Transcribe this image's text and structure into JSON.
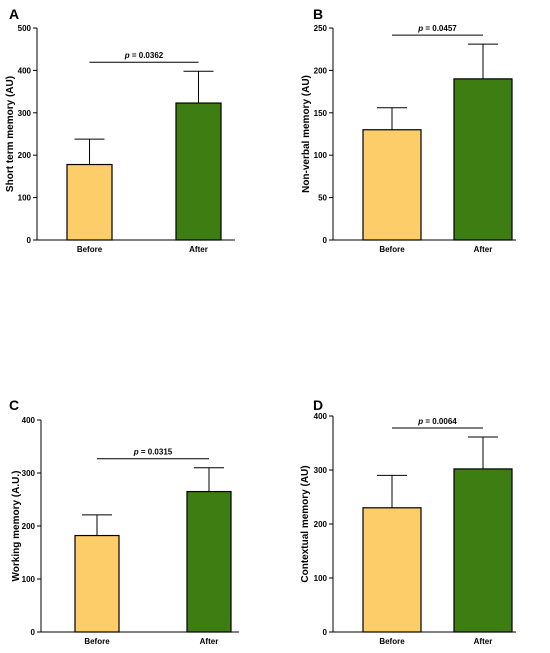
{
  "colors": {
    "before": "#FDCD6A",
    "after": "#3D7D12",
    "stroke": "#000000"
  },
  "chart_data": [
    {
      "type": "bar",
      "panel_label": "A",
      "categories": [
        "Before",
        "After"
      ],
      "values": [
        178,
        323
      ],
      "error_upper": [
        238,
        398
      ],
      "ylabel": "Short term memory (AU)",
      "ylim": [
        0,
        500
      ],
      "yticks": [
        0,
        100,
        200,
        300,
        400,
        500
      ],
      "annotation": {
        "prefix": "p",
        "text": " = 0.0362"
      },
      "grid": false
    },
    {
      "type": "bar",
      "panel_label": "B",
      "categories": [
        "Before",
        "After"
      ],
      "values": [
        130,
        190
      ],
      "error_upper": [
        156,
        231
      ],
      "ylabel": "Non-verbal memory (AU)",
      "ylim": [
        0,
        250
      ],
      "yticks": [
        0,
        50,
        100,
        150,
        200,
        250
      ],
      "annotation": {
        "prefix": "p",
        "text": " = 0.0457"
      },
      "grid": false
    },
    {
      "type": "bar",
      "panel_label": "C",
      "categories": [
        "Before",
        "After"
      ],
      "values": [
        182,
        265
      ],
      "error_upper": [
        221,
        310
      ],
      "ylabel": "Working memory (A.U.)",
      "ylim": [
        0,
        400
      ],
      "yticks": [
        0,
        100,
        200,
        300,
        400
      ],
      "annotation": {
        "prefix": "p",
        "text": " = 0.0315"
      },
      "grid": false
    },
    {
      "type": "bar",
      "panel_label": "D",
      "categories": [
        "Before",
        "After"
      ],
      "values": [
        230,
        302
      ],
      "error_upper": [
        290,
        361
      ],
      "ylabel": "Contextual memory  (AU)",
      "ylim": [
        0,
        400
      ],
      "yticks": [
        0,
        100,
        200,
        300,
        400
      ],
      "annotation": {
        "prefix": "p",
        "text": " = 0.0064"
      },
      "grid": false
    }
  ]
}
